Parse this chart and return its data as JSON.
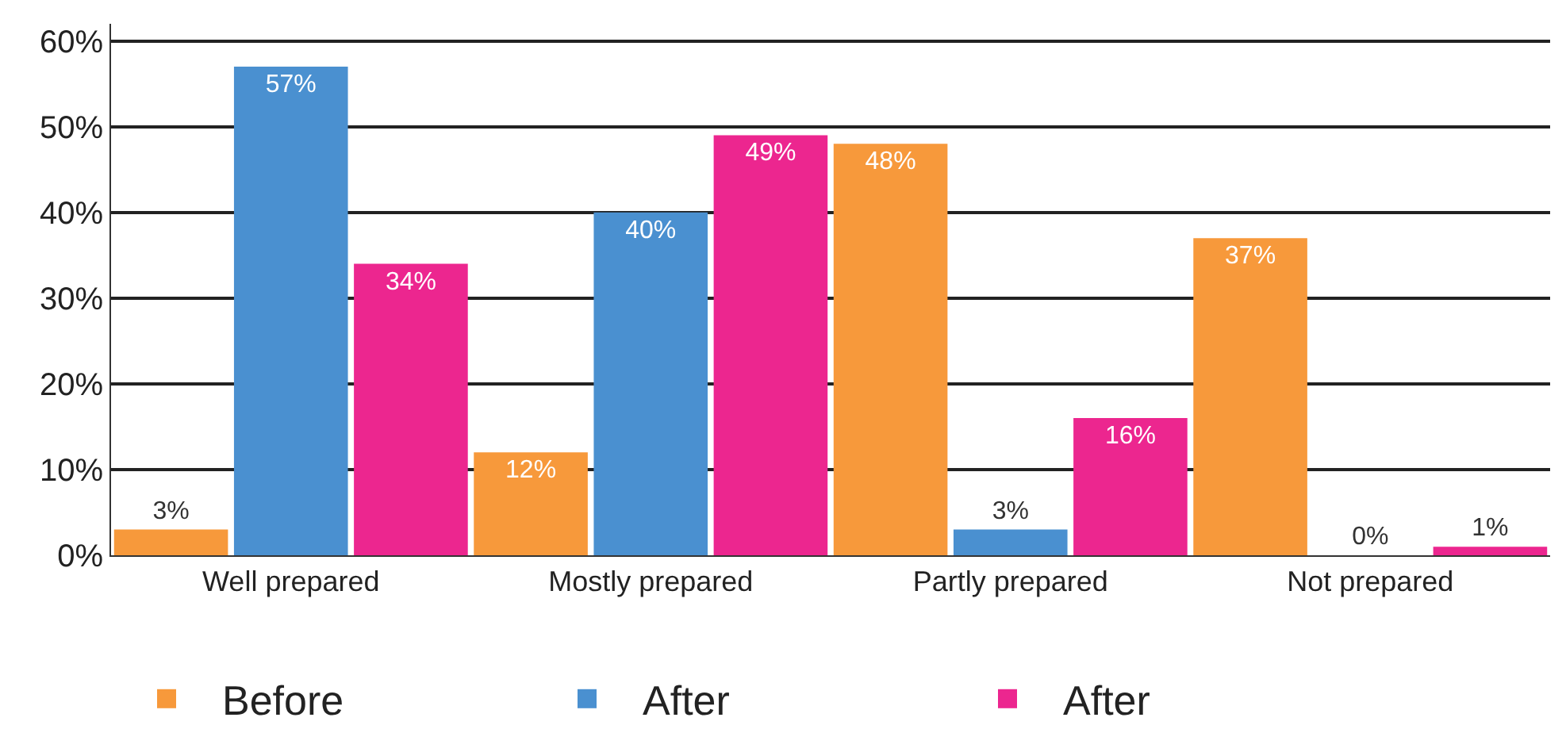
{
  "chart_data": {
    "type": "bar",
    "categories": [
      "Well prepared",
      "Mostly prepared",
      "Partly prepared",
      "Not prepared"
    ],
    "series": [
      {
        "name": "Before",
        "color": "#f7993b",
        "values": [
          3,
          12,
          48,
          37
        ],
        "value_labels": [
          "3%",
          "12%",
          "48%",
          "37%"
        ]
      },
      {
        "name": "After",
        "color": "#4a90d0",
        "values": [
          57,
          40,
          3,
          0
        ],
        "value_labels": [
          "57%",
          "40%",
          "3%",
          "0%"
        ]
      },
      {
        "name": "After",
        "color": "#ec268f",
        "values": [
          34,
          49,
          16,
          1
        ],
        "value_labels": [
          "34%",
          "49%",
          "16%",
          "1%"
        ]
      }
    ],
    "ylim": [
      0,
      62
    ],
    "yticks": [
      {
        "value": 0,
        "label": "0%"
      },
      {
        "value": 10,
        "label": "10%"
      },
      {
        "value": 20,
        "label": "20%"
      },
      {
        "value": 30,
        "label": "30%"
      },
      {
        "value": 40,
        "label": "40%"
      },
      {
        "value": 50,
        "label": "50%"
      },
      {
        "value": 60,
        "label": "60%"
      }
    ],
    "grid": "y",
    "legend": "bottom"
  }
}
